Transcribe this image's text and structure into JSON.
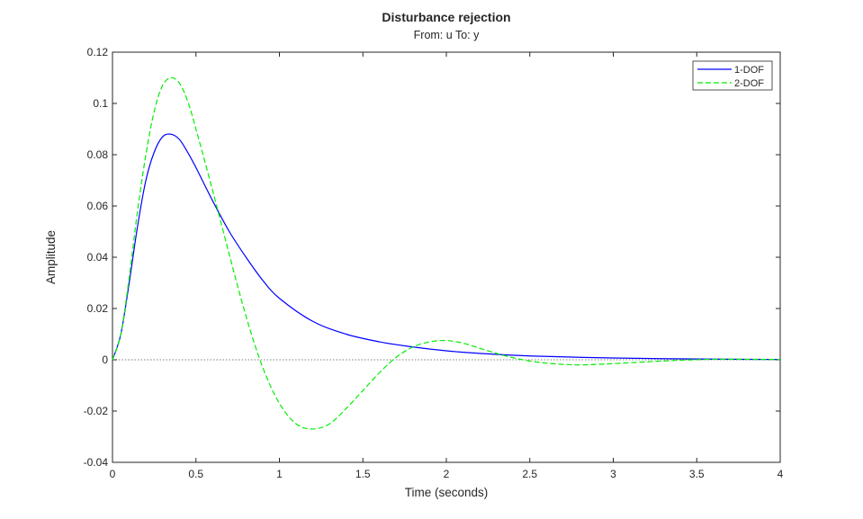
{
  "chart_data": {
    "type": "line",
    "title": "Disturbance rejection",
    "subtitle": "From: u  To: y",
    "xlabel": "Time (seconds)",
    "ylabel": "Amplitude",
    "xlim": [
      0,
      4
    ],
    "ylim": [
      -0.04,
      0.12
    ],
    "xticks": [
      0,
      0.5,
      1,
      1.5,
      2,
      2.5,
      3,
      3.5,
      4
    ],
    "xtick_labels": [
      "0",
      "0.5",
      "1",
      "1.5",
      "2",
      "2.5",
      "3",
      "3.5",
      "4"
    ],
    "yticks": [
      -0.04,
      -0.02,
      0,
      0.02,
      0.04,
      0.06,
      0.08,
      0.1,
      0.12
    ],
    "ytick_labels": [
      "-0.04",
      "-0.02",
      "0",
      "0.02",
      "0.04",
      "0.06",
      "0.08",
      "0.1",
      "0.12"
    ],
    "grid": false,
    "legend_position": "top-right",
    "zero_line": true,
    "series": [
      {
        "name": "1-DOF",
        "color": "#0000ff",
        "style": "solid",
        "x": [
          0,
          0.05,
          0.1,
          0.15,
          0.2,
          0.25,
          0.3,
          0.35,
          0.4,
          0.45,
          0.5,
          0.6,
          0.7,
          0.8,
          0.9,
          1.0,
          1.2,
          1.4,
          1.6,
          1.8,
          2.0,
          2.2,
          2.5,
          3.0,
          3.5,
          4.0
        ],
        "y": [
          0,
          0.01,
          0.03,
          0.052,
          0.07,
          0.081,
          0.087,
          0.088,
          0.086,
          0.081,
          0.075,
          0.062,
          0.05,
          0.04,
          0.031,
          0.024,
          0.015,
          0.01,
          0.007,
          0.005,
          0.0035,
          0.0025,
          0.0015,
          0.0007,
          0.0003,
          0.0001
        ]
      },
      {
        "name": "2-DOF",
        "color": "#00ee00",
        "style": "dashed",
        "x": [
          0,
          0.05,
          0.1,
          0.15,
          0.2,
          0.25,
          0.3,
          0.35,
          0.4,
          0.45,
          0.5,
          0.6,
          0.7,
          0.8,
          0.9,
          1.0,
          1.1,
          1.2,
          1.3,
          1.4,
          1.5,
          1.6,
          1.7,
          1.8,
          1.9,
          2.0,
          2.1,
          2.2,
          2.3,
          2.4,
          2.5,
          2.6,
          2.7,
          2.8,
          2.9,
          3.0,
          3.2,
          3.4,
          3.6,
          3.8,
          4.0
        ],
        "y": [
          0,
          0.01,
          0.032,
          0.058,
          0.08,
          0.097,
          0.107,
          0.11,
          0.108,
          0.101,
          0.09,
          0.066,
          0.041,
          0.017,
          -0.003,
          -0.017,
          -0.025,
          -0.027,
          -0.025,
          -0.019,
          -0.012,
          -0.005,
          0.001,
          0.005,
          0.007,
          0.0075,
          0.0065,
          0.0045,
          0.0025,
          0.0008,
          -0.0005,
          -0.0013,
          -0.0018,
          -0.002,
          -0.0018,
          -0.0015,
          -0.0008,
          -0.0002,
          0.0002,
          0.0002,
          0.0001
        ]
      }
    ]
  }
}
